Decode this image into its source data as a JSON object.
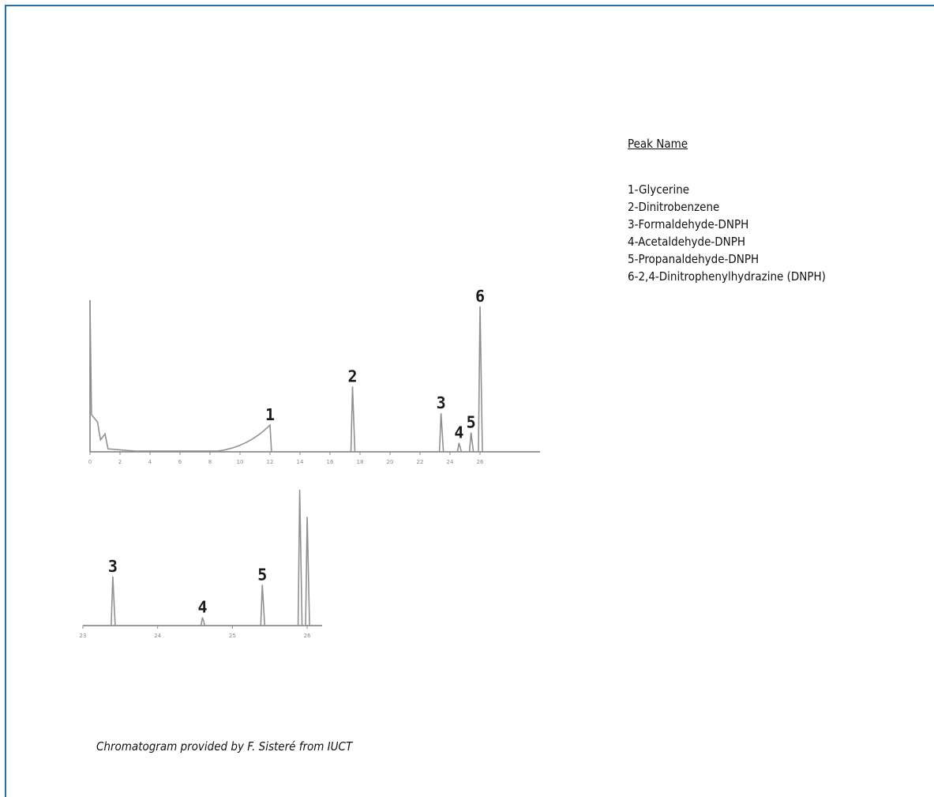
{
  "legend": {
    "title": "Peak Name",
    "items": [
      "1-Glycerine",
      "2-Dinitrobenzene",
      "3-Formaldehyde-DNPH",
      "4-Acetaldehyde-DNPH",
      "5-Propanaldehyde-DNPH",
      "6-2,4-Dinitrophenylhydrazine (DNPH)"
    ]
  },
  "caption": "Chromatogram provided by F. Sisteré from IUCT",
  "chart_data": [
    {
      "type": "line",
      "title": "",
      "xlabel": "",
      "ylabel": "",
      "xlim": [
        0,
        30
      ],
      "ylim": [
        0,
        100
      ],
      "x_ticks": [
        0,
        2,
        4,
        6,
        8,
        10,
        12,
        14,
        16,
        18,
        20,
        22,
        24,
        26
      ],
      "peaks": [
        {
          "label": "1",
          "x": 12.0,
          "y": 18
        },
        {
          "label": "2",
          "x": 17.5,
          "y": 44
        },
        {
          "label": "3",
          "x": 23.4,
          "y": 26
        },
        {
          "label": "4",
          "x": 24.6,
          "y": 6
        },
        {
          "label": "5",
          "x": 25.4,
          "y": 13
        },
        {
          "label": "6",
          "x": 26.0,
          "y": 98
        }
      ]
    },
    {
      "type": "line",
      "title": "",
      "xlabel": "",
      "ylabel": "",
      "xlim": [
        23,
        26.2
      ],
      "ylim": [
        0,
        100
      ],
      "x_ticks": [
        23,
        24,
        25,
        26
      ],
      "peaks": [
        {
          "label": "3",
          "x": 23.4,
          "y": 36
        },
        {
          "label": "4",
          "x": 24.6,
          "y": 6
        },
        {
          "label": "5",
          "x": 25.4,
          "y": 30
        },
        {
          "label": "",
          "x": 25.9,
          "y": 100
        },
        {
          "label": "",
          "x": 26.0,
          "y": 80
        }
      ]
    }
  ]
}
